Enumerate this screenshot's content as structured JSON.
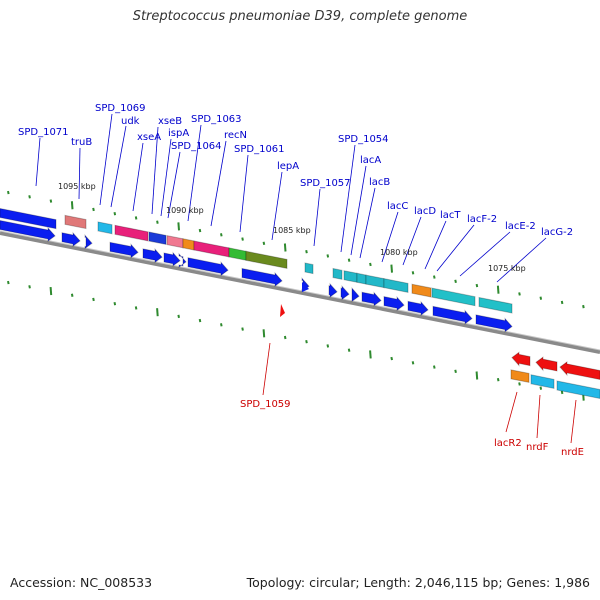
{
  "title": "Streptococcus pneumoniae D39, complete genome",
  "footer": {
    "accession": "Accession: NC_008533",
    "summary": "Topology: circular; Length: 2,046,115 bp; Genes: 1,986"
  },
  "colors": {
    "forward_label": "#0000cc",
    "reverse_label": "#cc0000",
    "backbone": "#777777",
    "tick": "#338833"
  },
  "scale_labels": [
    "1095 kbp",
    "1090 kbp",
    "1085 kbp",
    "1080 kbp",
    "1075 kbp"
  ],
  "forward_labels": [
    "SPD_1071",
    "truB",
    "SPD_1069",
    "udk",
    "xseA",
    "xseB",
    "ispA",
    "SPD_1064",
    "SPD_1063",
    "recN",
    "SPD_1061",
    "lepA",
    "SPD_1057",
    "SPD_1054",
    "lacA",
    "lacB",
    "lacC",
    "lacD",
    "lacT",
    "lacF-2",
    "lacE-2",
    "lacG-2"
  ],
  "reverse_labels": [
    "SPD_1059",
    "lacR2",
    "nrdF",
    "nrdE"
  ]
}
